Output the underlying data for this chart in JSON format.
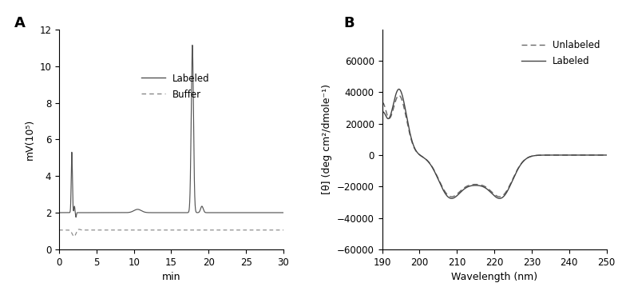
{
  "panel_A": {
    "xlabel": "min",
    "ylabel": "mV(10⁵)",
    "xlim": [
      0,
      30
    ],
    "ylim": [
      0,
      12
    ],
    "yticks": [
      0,
      2,
      4,
      6,
      8,
      10,
      12
    ],
    "xticks": [
      0,
      5,
      10,
      15,
      20,
      25,
      30
    ],
    "labeled_legend": "Labeled",
    "buffer_legend": "Buffer",
    "line_color": "#555555",
    "buffer_color": "#888888"
  },
  "panel_B": {
    "xlabel": "Wavelength (nm)",
    "ylabel": "[θ] (deg cm²/dmole⁻¹)",
    "xlim": [
      190,
      250
    ],
    "ylim": [
      -60000,
      80000
    ],
    "yticks": [
      -60000,
      -40000,
      -20000,
      0,
      20000,
      40000,
      60000
    ],
    "xticks": [
      190,
      200,
      210,
      220,
      230,
      240,
      250
    ],
    "unlabeled_legend": "Unlabeled",
    "labeled_legend": "Labeled",
    "line_color": "#444444",
    "unlabeled_color": "#666666"
  }
}
